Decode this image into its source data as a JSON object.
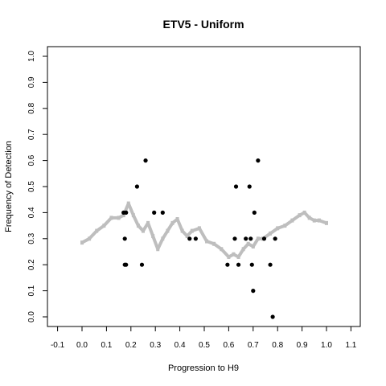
{
  "chart_data": {
    "type": "scatter",
    "title": "ETV5 - Uniform",
    "xlabel": "Progression to H9",
    "ylabel": "Frequency of Detection",
    "xlim": [
      -0.1,
      1.1
    ],
    "ylim": [
      0.0,
      1.0
    ],
    "x_ticks": [
      "-0.1",
      "0.0",
      "0.1",
      "0.2",
      "0.3",
      "0.4",
      "0.5",
      "0.6",
      "0.7",
      "0.8",
      "0.9",
      "1.0",
      "1.1"
    ],
    "y_ticks": [
      "0.0",
      "0.1",
      "0.2",
      "0.3",
      "0.4",
      "0.5",
      "0.6",
      "0.7",
      "0.8",
      "0.9",
      "1.0"
    ],
    "grid": false,
    "legend": "none",
    "colors": {
      "detections": "#000000",
      "smoothed": "#bebebe"
    },
    "series": [
      {
        "kind": "points",
        "x": [
          0.17,
          0.175,
          0.18,
          0.175,
          0.18,
          0.225,
          0.245,
          0.26,
          0.295,
          0.33,
          0.44,
          0.465,
          0.595,
          0.625,
          0.63,
          0.64,
          0.67,
          0.685,
          0.69,
          0.695,
          0.7,
          0.705,
          0.72,
          0.745,
          0.77,
          0.78,
          0.79
        ],
        "y": [
          0.4,
          0.3,
          0.2,
          0.2,
          0.4,
          0.5,
          0.2,
          0.6,
          0.4,
          0.4,
          0.3,
          0.3,
          0.2,
          0.3,
          0.5,
          0.2,
          0.3,
          0.5,
          0.3,
          0.2,
          0.1,
          0.4,
          0.6,
          0.3,
          0.2,
          0.0,
          0.3
        ]
      },
      {
        "kind": "smoothed",
        "x": [
          0.0,
          0.03,
          0.06,
          0.09,
          0.12,
          0.15,
          0.17,
          0.19,
          0.21,
          0.23,
          0.25,
          0.27,
          0.29,
          0.31,
          0.33,
          0.35,
          0.37,
          0.39,
          0.41,
          0.43,
          0.45,
          0.48,
          0.51,
          0.54,
          0.57,
          0.6,
          0.62,
          0.64,
          0.66,
          0.68,
          0.7,
          0.72,
          0.74,
          0.77,
          0.8,
          0.83,
          0.86,
          0.89,
          0.91,
          0.93,
          0.95,
          0.97,
          1.0
        ],
        "y": [
          0.285,
          0.3,
          0.33,
          0.35,
          0.38,
          0.38,
          0.39,
          0.435,
          0.39,
          0.35,
          0.33,
          0.36,
          0.31,
          0.26,
          0.3,
          0.33,
          0.36,
          0.375,
          0.33,
          0.31,
          0.33,
          0.34,
          0.29,
          0.28,
          0.26,
          0.23,
          0.24,
          0.23,
          0.26,
          0.28,
          0.27,
          0.3,
          0.3,
          0.32,
          0.34,
          0.35,
          0.37,
          0.39,
          0.4,
          0.38,
          0.37,
          0.37,
          0.36
        ]
      }
    ]
  }
}
